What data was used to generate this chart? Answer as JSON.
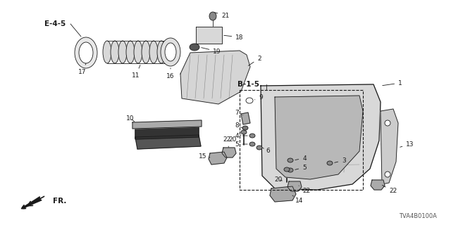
{
  "bg_color": "#ffffff",
  "watermark": "TVA4B0100A",
  "diagram_label_e45": "E-4-5",
  "diagram_label_b15": "B-1-5",
  "fr_label": "FR.",
  "line_color": "#1a1a1a",
  "gray_dark": "#333333",
  "gray_mid": "#666666",
  "gray_light": "#aaaaaa",
  "gray_fill": "#cccccc",
  "gray_fill2": "#e0e0e0",
  "label_fs": 6.5,
  "bold_fs": 7.5
}
